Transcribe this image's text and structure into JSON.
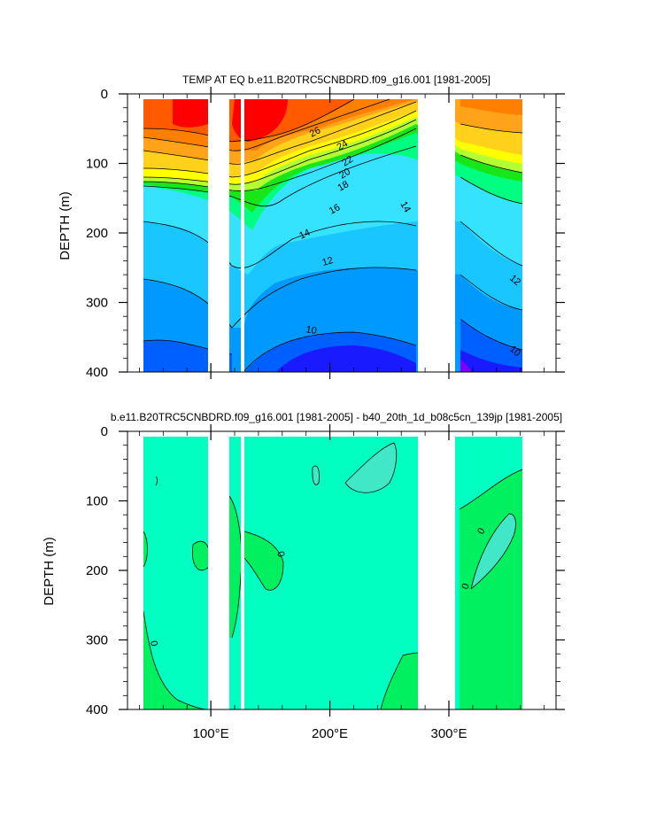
{
  "chart_data": [
    {
      "type": "contour",
      "title": "TEMP AT EQ b.e11.B20TRC5CNBDRD.f09_g16.001 [1981-2005]",
      "xlabel": "",
      "ylabel": "DEPTH (m)",
      "xlim": [
        30,
        390
      ],
      "ylim": [
        400,
        0
      ],
      "x_ticks": [
        100,
        200,
        300
      ],
      "x_tick_labels": [
        "100°E",
        "200°E",
        "300°E"
      ],
      "y_ticks": [
        0,
        100,
        200,
        300,
        400
      ],
      "y_tick_labels": [
        "0",
        "100",
        "200",
        "300",
        "400"
      ],
      "land_masks_lon": [
        [
          99,
          117
        ],
        [
          130,
          131
        ],
        [
          279,
          314
        ]
      ],
      "contour_labels": [
        "26",
        "24",
        "22",
        "20",
        "18",
        "16",
        "14",
        "12",
        "10",
        "14",
        "12",
        "10"
      ],
      "color_scale": [
        "#7f00ff",
        "#1a1aff",
        "#0060ff",
        "#0099ff",
        "#1ac6ff",
        "#35e3ff",
        "#00ff80",
        "#19e619",
        "#b3ff33",
        "#ffff00",
        "#ffd11a",
        "#ffa31a",
        "#ff8000",
        "#ff5a00",
        "#ff0000"
      ]
    },
    {
      "type": "contour",
      "title": "b.e11.B20TRC5CNBDRD.f09_g16.001 [1981-2005] - b40_20th_1d_b08c5cn_139jp [1981-2005]",
      "xlabel": "",
      "ylabel": "DEPTH (m)",
      "xlim": [
        30,
        390
      ],
      "ylim": [
        400,
        0
      ],
      "x_ticks": [
        100,
        200,
        300
      ],
      "x_tick_labels": [
        "100°E",
        "200°E",
        "300°E"
      ],
      "y_ticks": [
        0,
        100,
        200,
        300,
        400
      ],
      "y_tick_labels": [
        "0",
        "100",
        "200",
        "300",
        "400"
      ],
      "land_masks_lon": [
        [
          99,
          117
        ],
        [
          130,
          131
        ],
        [
          279,
          314
        ]
      ],
      "contour_labels": [
        "0",
        "0",
        "0",
        "0"
      ],
      "color_scale": [
        "#00ffc0",
        "#00f060",
        "#40e8c8"
      ]
    }
  ]
}
